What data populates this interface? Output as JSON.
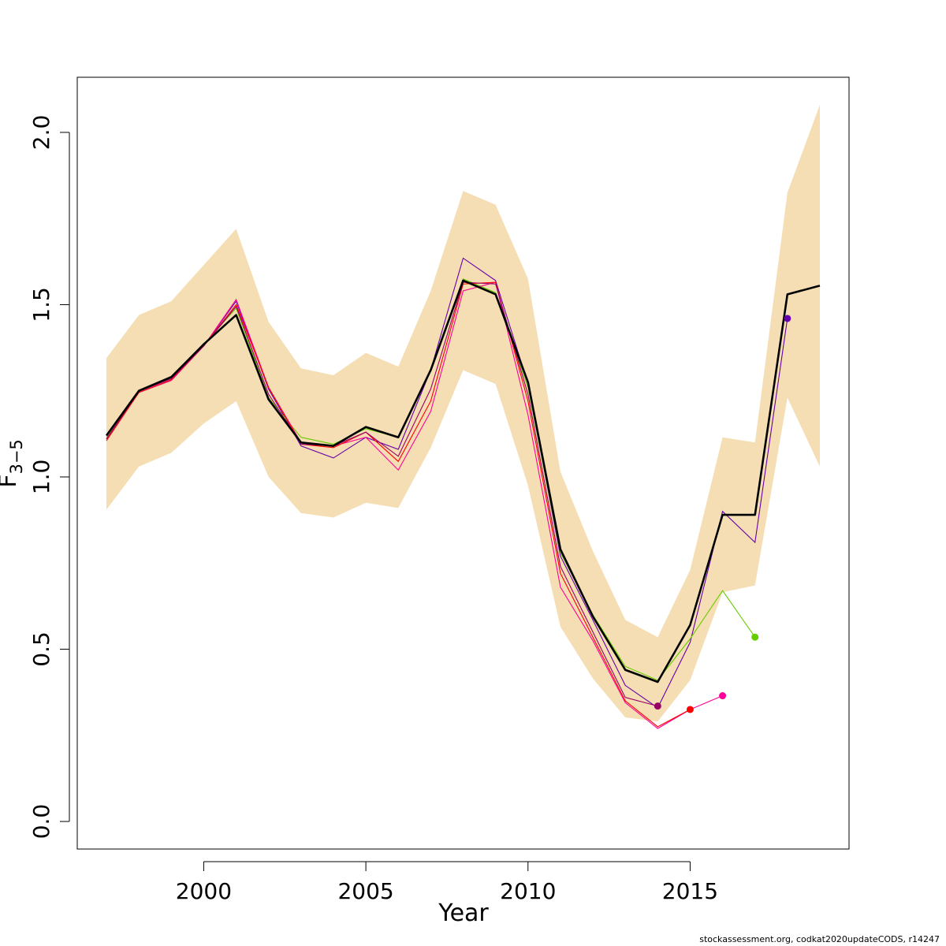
{
  "chart_data": {
    "type": "line",
    "xlabel": "Year",
    "ylabel_main": "F",
    "ylabel_sub": "3−5",
    "xlim": [
      1996.1,
      2019.9
    ],
    "ylim": [
      -0.08,
      2.16
    ],
    "xticks": [
      2000,
      2005,
      2010,
      2015
    ],
    "yticks": [
      0.0,
      0.5,
      1.0,
      1.5,
      2.0
    ],
    "ytick_labels": [
      "0.0",
      "0.5",
      "1.0",
      "1.5",
      "2.0"
    ],
    "band_color": "#f5deb3",
    "years": [
      1997,
      1998,
      1999,
      2000,
      2001,
      2002,
      2003,
      2004,
      2005,
      2006,
      2007,
      2008,
      2009,
      2010,
      2011,
      2012,
      2013,
      2014,
      2015,
      2016,
      2017,
      2018,
      2019
    ],
    "band_low": [
      0.905,
      1.03,
      1.07,
      1.155,
      1.22,
      1.0,
      0.895,
      0.882,
      0.925,
      0.91,
      1.085,
      1.31,
      1.27,
      0.975,
      0.565,
      0.415,
      0.302,
      0.29,
      0.41,
      0.665,
      0.685,
      1.23,
      1.03
    ],
    "band_high": [
      1.345,
      1.47,
      1.51,
      1.615,
      1.72,
      1.45,
      1.315,
      1.295,
      1.36,
      1.32,
      1.54,
      1.83,
      1.79,
      1.575,
      1.015,
      0.785,
      0.585,
      0.535,
      0.73,
      1.115,
      1.1,
      1.825,
      2.08
    ],
    "main_series": {
      "color": "#000000",
      "values": [
        1.12,
        1.25,
        1.29,
        1.385,
        1.47,
        1.225,
        1.1,
        1.09,
        1.145,
        1.115,
        1.31,
        1.57,
        1.53,
        1.275,
        0.79,
        0.595,
        0.44,
        0.405,
        0.57,
        0.89,
        0.89,
        1.53,
        1.555
      ]
    },
    "retro_series": [
      {
        "color": "#6600aa",
        "end_year": 2018,
        "values": [
          1.11,
          1.25,
          1.285,
          1.38,
          1.51,
          1.255,
          1.09,
          1.055,
          1.115,
          1.08,
          1.31,
          1.635,
          1.57,
          1.27,
          0.77,
          0.585,
          0.395,
          0.33,
          0.52,
          0.9,
          0.81,
          1.46
        ]
      },
      {
        "color": "#66cc00",
        "end_year": 2017,
        "values": [
          1.115,
          1.248,
          1.288,
          1.385,
          1.49,
          1.23,
          1.115,
          1.095,
          1.14,
          1.115,
          1.31,
          1.575,
          1.535,
          1.26,
          0.78,
          0.6,
          0.45,
          0.41,
          0.53,
          0.67,
          0.535
        ]
      },
      {
        "color": "#ff0099",
        "end_year": 2016,
        "values": [
          1.11,
          1.245,
          1.28,
          1.38,
          1.515,
          1.26,
          1.1,
          1.09,
          1.115,
          1.02,
          1.19,
          1.54,
          1.565,
          1.18,
          0.68,
          0.525,
          0.345,
          0.27,
          0.325,
          0.365
        ]
      },
      {
        "color": "#ff0000",
        "end_year": 2015,
        "values": [
          1.105,
          1.245,
          1.282,
          1.38,
          1.5,
          1.26,
          1.095,
          1.085,
          1.13,
          1.045,
          1.22,
          1.56,
          1.565,
          1.22,
          0.72,
          0.535,
          0.35,
          0.275,
          0.325
        ]
      },
      {
        "color": "#990066",
        "end_year": 2014,
        "values": [
          1.11,
          1.248,
          1.285,
          1.38,
          1.495,
          1.24,
          1.095,
          1.09,
          1.13,
          1.06,
          1.255,
          1.565,
          1.56,
          1.24,
          0.74,
          0.55,
          0.36,
          0.335
        ]
      }
    ]
  },
  "credit": "stockassessment.org, codkat2020updateCODS, r14247"
}
